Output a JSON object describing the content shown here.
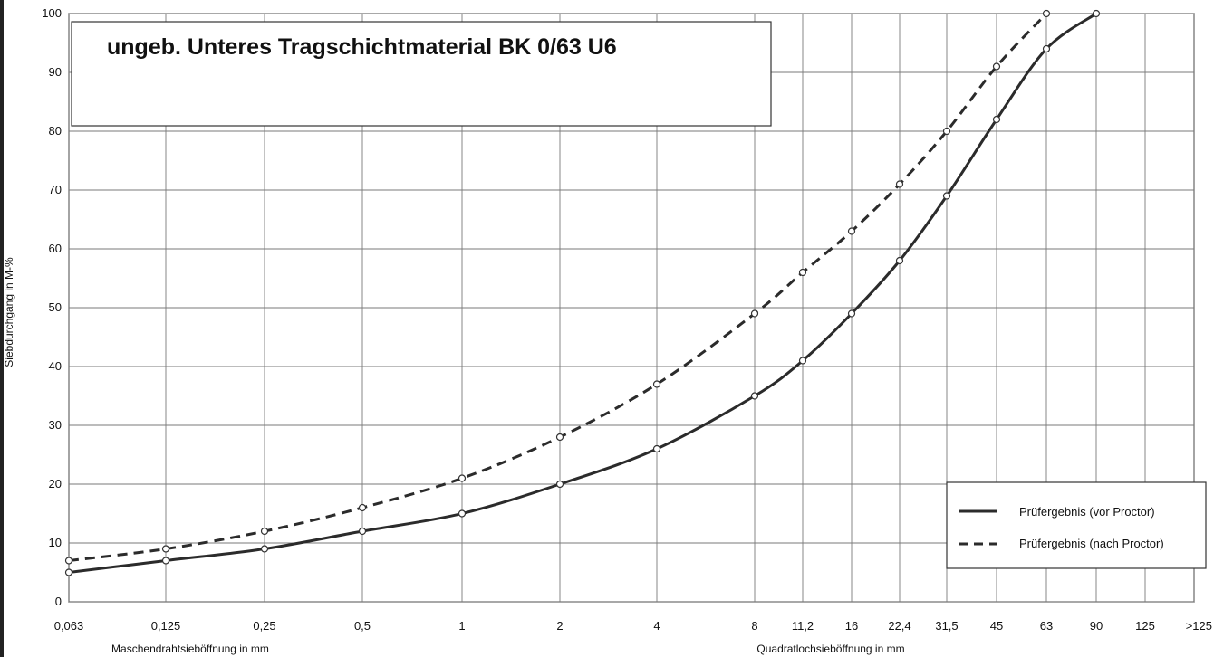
{
  "chart_data": {
    "type": "line",
    "title": "ungeb. Unteres Tragschichtmaterial BK 0/63 U6",
    "ylabel": "Siebdurchgang in M-%",
    "xlabel_left": "Maschendrahtsieböffnung in mm",
    "xlabel_right": "Quadratlochsieböffnung in mm",
    "x_categories": [
      "0,063",
      "0,125",
      "0,25",
      "0,5",
      "1",
      "2",
      "4",
      "8",
      "11,2",
      "16",
      "22,4",
      "31,5",
      "45",
      "63",
      "90",
      "125",
      ">125"
    ],
    "x_values": [
      0.063,
      0.125,
      0.25,
      0.5,
      1,
      2,
      4,
      8,
      11.2,
      16,
      22.4,
      31.5,
      45,
      63,
      90,
      125,
      180
    ],
    "x_scale": "log",
    "ylim": [
      0,
      100
    ],
    "y_ticks": [
      0,
      10,
      20,
      30,
      40,
      50,
      60,
      70,
      80,
      90,
      100
    ],
    "grid": true,
    "legend_position": "bottom-right",
    "series": [
      {
        "name": "Prüfergebnis (vor Proctor)",
        "style": "solid",
        "color": "#2b2b2b",
        "points": [
          [
            0.063,
            5
          ],
          [
            0.125,
            7
          ],
          [
            0.25,
            9
          ],
          [
            0.5,
            12
          ],
          [
            1,
            15
          ],
          [
            2,
            20
          ],
          [
            4,
            26
          ],
          [
            8,
            35
          ],
          [
            11.2,
            41
          ],
          [
            16,
            49
          ],
          [
            22.4,
            58
          ],
          [
            31.5,
            69
          ],
          [
            45,
            82
          ],
          [
            63,
            94
          ],
          [
            90,
            100
          ]
        ]
      },
      {
        "name": "Prüfergebnis (nach Proctor)",
        "style": "dashed",
        "color": "#2b2b2b",
        "points": [
          [
            0.063,
            7
          ],
          [
            0.125,
            9
          ],
          [
            0.25,
            12
          ],
          [
            0.5,
            16
          ],
          [
            1,
            21
          ],
          [
            2,
            28
          ],
          [
            4,
            37
          ],
          [
            8,
            49
          ],
          [
            11.2,
            56
          ],
          [
            16,
            63
          ],
          [
            22.4,
            71
          ],
          [
            31.5,
            80
          ],
          [
            45,
            91
          ],
          [
            63,
            100
          ]
        ]
      }
    ]
  }
}
